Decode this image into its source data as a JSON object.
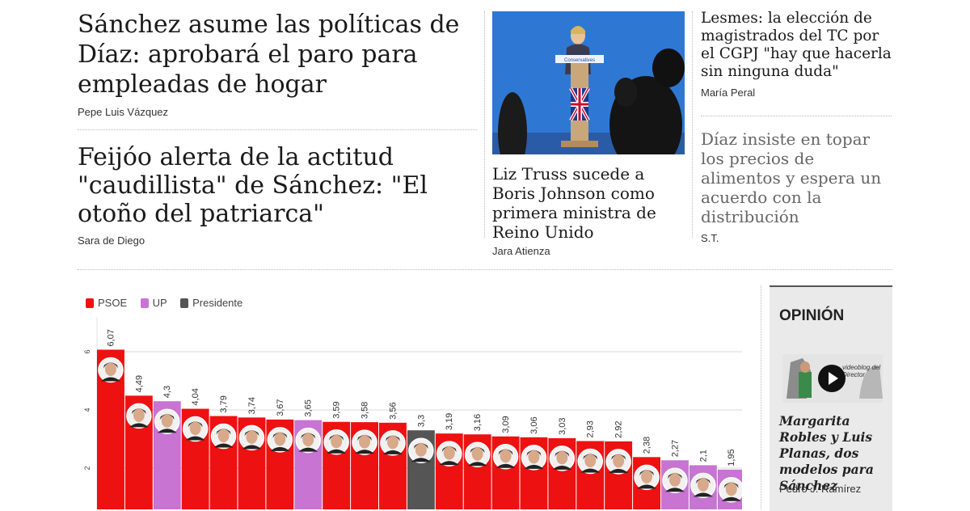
{
  "left_col": {
    "story1": {
      "headline": "Sánchez asume las políticas de Díaz: aprobará el paro para empleadas de hogar",
      "author": "Pepe Luis Vázquez"
    },
    "story2": {
      "headline": "Feijóo alerta de la actitud \"caudillista\" de Sánchez: \"El otoño del patriarca\"",
      "author": "Sara de Diego"
    }
  },
  "mid_col": {
    "photo_sign": "Conservatives",
    "headline": "Liz Truss sucede a Boris Johnson como primera ministra de Reino Unido",
    "author": "Jara Atienza"
  },
  "right_col": {
    "story1": {
      "headline": "Lesmes: la elección de magistrados del TC por el CGPJ \"hay que hacerla sin ninguna duda\"",
      "author": "María Peral"
    },
    "story2": {
      "headline": "Díaz insiste en topar los precios de alimentos y espera un acuerdo con la distribución",
      "author": "S.T."
    }
  },
  "opinion": {
    "title": "OPINIÓN",
    "video_caption": "videoblog del Director",
    "headline": "Margarita Robles y Luis Planas, dos modelos para Sánchez",
    "author": "Pedro J. Ramírez"
  },
  "chart_data": {
    "type": "bar",
    "legend": [
      {
        "name": "PSOE",
        "color": "#ee1111"
      },
      {
        "name": "UP",
        "color": "#c774d3"
      },
      {
        "name": "Presidente",
        "color": "#555555"
      }
    ],
    "y_ticks": [
      "6",
      "4",
      "2"
    ],
    "ylim": [
      0,
      6.5
    ],
    "series": [
      {
        "value_label": "6,07",
        "value": 6.07,
        "party": "PSOE"
      },
      {
        "value_label": "4,49",
        "value": 4.49,
        "party": "PSOE"
      },
      {
        "value_label": "4,3",
        "value": 4.3,
        "party": "UP"
      },
      {
        "value_label": "4,04",
        "value": 4.04,
        "party": "PSOE"
      },
      {
        "value_label": "3,79",
        "value": 3.79,
        "party": "PSOE"
      },
      {
        "value_label": "3,74",
        "value": 3.74,
        "party": "PSOE"
      },
      {
        "value_label": "3,67",
        "value": 3.67,
        "party": "PSOE"
      },
      {
        "value_label": "3,65",
        "value": 3.65,
        "party": "UP"
      },
      {
        "value_label": "3,59",
        "value": 3.59,
        "party": "PSOE"
      },
      {
        "value_label": "3,58",
        "value": 3.58,
        "party": "PSOE"
      },
      {
        "value_label": "3,56",
        "value": 3.56,
        "party": "PSOE"
      },
      {
        "value_label": "3,3",
        "value": 3.3,
        "party": "Presidente"
      },
      {
        "value_label": "3,19",
        "value": 3.19,
        "party": "PSOE"
      },
      {
        "value_label": "3,16",
        "value": 3.16,
        "party": "PSOE"
      },
      {
        "value_label": "3,09",
        "value": 3.09,
        "party": "PSOE"
      },
      {
        "value_label": "3,06",
        "value": 3.06,
        "party": "PSOE"
      },
      {
        "value_label": "3,03",
        "value": 3.03,
        "party": "PSOE"
      },
      {
        "value_label": "2,93",
        "value": 2.93,
        "party": "PSOE"
      },
      {
        "value_label": "2,92",
        "value": 2.92,
        "party": "PSOE"
      },
      {
        "value_label": "2,38",
        "value": 2.38,
        "party": "PSOE"
      },
      {
        "value_label": "2,27",
        "value": 2.27,
        "party": "UP"
      },
      {
        "value_label": "2,1",
        "value": 2.1,
        "party": "UP"
      },
      {
        "value_label": "1,95",
        "value": 1.95,
        "party": "UP"
      }
    ]
  }
}
